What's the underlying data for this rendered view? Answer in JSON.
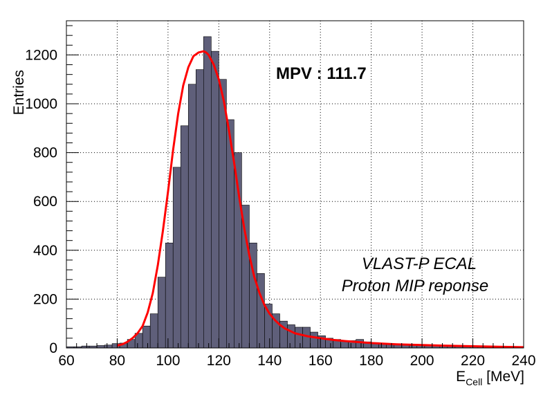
{
  "chart_data": {
    "type": "bar",
    "title": "",
    "xlabel": "E_Cell [MeV]",
    "xlabel_main": "E",
    "xlabel_sub": "Cell",
    "xlabel_unit": " [MeV]",
    "ylabel": "Entries",
    "xlim": [
      60,
      240
    ],
    "ylim": [
      0,
      1340
    ],
    "grid": true,
    "x_ticks": [
      60,
      80,
      100,
      120,
      140,
      160,
      180,
      200,
      220,
      240
    ],
    "y_ticks": [
      0,
      200,
      400,
      600,
      800,
      1000,
      1200
    ],
    "histogram": {
      "name": "E_Cell",
      "bin_width": 3,
      "bin_starts": [
        60,
        63,
        66,
        69,
        72,
        75,
        78,
        81,
        84,
        87,
        90,
        93,
        96,
        99,
        102,
        105,
        108,
        111,
        114,
        117,
        120,
        123,
        126,
        129,
        132,
        135,
        138,
        141,
        144,
        147,
        150,
        153,
        156,
        159,
        162,
        165,
        168,
        171,
        174,
        177,
        180,
        183,
        186,
        189,
        192,
        195,
        198,
        201,
        204,
        207,
        210,
        213,
        216,
        219,
        222,
        225,
        228,
        231,
        234,
        237
      ],
      "values": [
        5,
        5,
        8,
        8,
        10,
        12,
        18,
        20,
        35,
        60,
        90,
        140,
        290,
        430,
        740,
        910,
        1080,
        1140,
        1275,
        1215,
        1100,
        935,
        800,
        585,
        430,
        305,
        180,
        140,
        110,
        95,
        85,
        85,
        65,
        50,
        40,
        35,
        30,
        30,
        35,
        25,
        22,
        18,
        15,
        15,
        12,
        10,
        12,
        8,
        8,
        8,
        8,
        5,
        5,
        6,
        5,
        5,
        5,
        5,
        5,
        5
      ],
      "fill_color": "#5f5f7a",
      "edge_color": "#000000"
    },
    "fit": {
      "name": "Landau fit",
      "color": "#ff0000",
      "x": [
        80,
        82,
        84,
        86,
        88,
        90,
        92,
        94,
        96,
        98,
        100,
        102,
        104,
        106,
        108,
        110,
        112,
        114,
        115,
        116,
        118,
        120,
        122,
        124,
        126,
        128,
        130,
        132,
        134,
        136,
        138,
        140,
        142,
        144,
        146,
        148,
        150,
        155,
        160,
        165,
        170,
        175,
        180,
        190,
        200,
        210,
        220,
        230,
        240
      ],
      "y": [
        10,
        15,
        25,
        40,
        60,
        90,
        145,
        225,
        340,
        480,
        640,
        810,
        960,
        1075,
        1150,
        1195,
        1210,
        1215,
        1210,
        1200,
        1160,
        1100,
        1010,
        890,
        760,
        620,
        490,
        380,
        290,
        225,
        175,
        140,
        115,
        95,
        80,
        70,
        60,
        48,
        40,
        33,
        28,
        24,
        20,
        15,
        12,
        9,
        7,
        5,
        3
      ]
    },
    "annotations": {
      "mpv": "MPV : 111.7",
      "note_line1": "VLAST-P ECAL",
      "note_line2": "Proton MIP reponse"
    }
  }
}
